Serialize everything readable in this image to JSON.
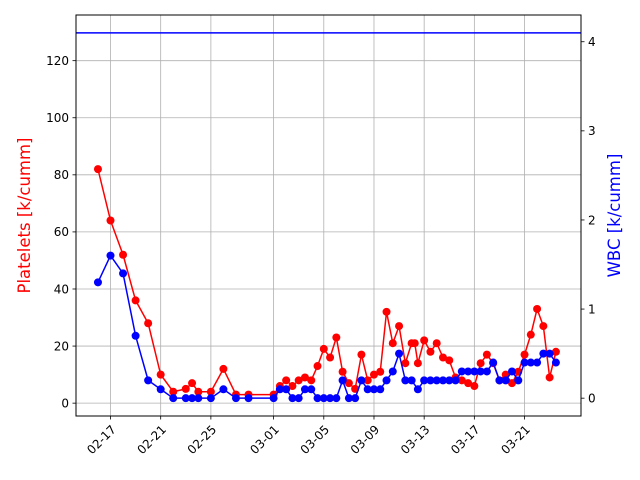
{
  "chart_data": {
    "type": "line",
    "title": "",
    "x_tick_labels": [
      "02-17",
      "02-21",
      "02-25",
      "03-01",
      "03-05",
      "03-09",
      "03-13",
      "03-17",
      "03-21"
    ],
    "left_axis": {
      "label": "Platelets [k/cumm]",
      "color": "#ff0000",
      "ticks": [
        0,
        20,
        40,
        60,
        80,
        100,
        120
      ],
      "ylim": [
        -4.5,
        136
      ]
    },
    "right_axis": {
      "label": "WBC [k/cumm]",
      "color": "#0000ff",
      "ticks": [
        0,
        1,
        2,
        3,
        4
      ],
      "ylim": [
        -0.2,
        4.3
      ]
    },
    "grid": true,
    "series": [
      {
        "axis": "left",
        "color": "#ff0000",
        "points": [
          [
            "02-16",
            82
          ],
          [
            "02-17",
            64
          ],
          [
            "02-18",
            52
          ],
          [
            "02-19",
            36
          ],
          [
            "02-20",
            28
          ],
          [
            "02-21",
            10
          ],
          [
            "02-22",
            4
          ],
          [
            "02-23",
            5
          ],
          [
            "02-23 12:00",
            7
          ],
          [
            "02-24",
            4
          ],
          [
            "02-25",
            4
          ],
          [
            "02-26",
            12
          ],
          [
            "02-27",
            3
          ],
          [
            "02-28",
            3
          ],
          [
            "03-01",
            3
          ],
          [
            "03-01 12:00",
            6
          ],
          [
            "03-02",
            8
          ],
          [
            "03-02 12:00",
            6
          ],
          [
            "03-03",
            8
          ],
          [
            "03-03 12:00",
            9
          ],
          [
            "03-04",
            8
          ],
          [
            "03-04 12:00",
            13
          ],
          [
            "03-05",
            19
          ],
          [
            "03-05 12:00",
            16
          ],
          [
            "03-06",
            23
          ],
          [
            "03-06 12:00",
            11
          ],
          [
            "03-07",
            7
          ],
          [
            "03-07 12:00",
            5
          ],
          [
            "03-08",
            17
          ],
          [
            "03-08 12:00",
            8
          ],
          [
            "03-09",
            10
          ],
          [
            "03-09 12:00",
            11
          ],
          [
            "03-10",
            32
          ],
          [
            "03-10 12:00",
            21
          ],
          [
            "03-11",
            27
          ],
          [
            "03-11 12:00",
            14
          ],
          [
            "03-12",
            21
          ],
          [
            "03-12 06:00",
            21
          ],
          [
            "03-12 12:00",
            14
          ],
          [
            "03-13",
            22
          ],
          [
            "03-13 12:00",
            18
          ],
          [
            "03-14",
            21
          ],
          [
            "03-14 12:00",
            16
          ],
          [
            "03-15",
            15
          ],
          [
            "03-15 12:00",
            9
          ],
          [
            "03-16",
            8
          ],
          [
            "03-16 12:00",
            7
          ],
          [
            "03-17",
            6
          ],
          [
            "03-17 12:00",
            14
          ],
          [
            "03-18",
            17
          ],
          [
            "03-18 12:00",
            14
          ],
          [
            "03-19",
            8
          ],
          [
            "03-19 12:00",
            10
          ],
          [
            "03-20",
            7
          ],
          [
            "03-20 12:00",
            11
          ],
          [
            "03-21",
            17
          ],
          [
            "03-21 12:00",
            24
          ],
          [
            "03-22",
            33
          ],
          [
            "03-22 12:00",
            27
          ],
          [
            "03-23",
            9
          ],
          [
            "03-23 12:00",
            18
          ]
        ]
      },
      {
        "axis": "right",
        "color": "#0000ff",
        "points": [
          [
            "02-16",
            1.3
          ],
          [
            "02-17",
            1.6
          ],
          [
            "02-18",
            1.4
          ],
          [
            "02-19",
            0.7
          ],
          [
            "02-20",
            0.2
          ],
          [
            "02-21",
            0.1
          ],
          [
            "02-22",
            0.0
          ],
          [
            "02-23",
            0.0
          ],
          [
            "02-23 12:00",
            0.0
          ],
          [
            "02-24",
            0.0
          ],
          [
            "02-25",
            0.0
          ],
          [
            "02-26",
            0.1
          ],
          [
            "02-27",
            0.0
          ],
          [
            "02-28",
            0.0
          ],
          [
            "03-01",
            0.0
          ],
          [
            "03-01 12:00",
            0.1
          ],
          [
            "03-02",
            0.1
          ],
          [
            "03-02 12:00",
            0.0
          ],
          [
            "03-03",
            0.0
          ],
          [
            "03-03 12:00",
            0.1
          ],
          [
            "03-04",
            0.1
          ],
          [
            "03-04 12:00",
            0.0
          ],
          [
            "03-05",
            0.0
          ],
          [
            "03-05 12:00",
            0.0
          ],
          [
            "03-06",
            0.0
          ],
          [
            "03-06 12:00",
            0.2
          ],
          [
            "03-07",
            0.0
          ],
          [
            "03-07 12:00",
            0.0
          ],
          [
            "03-08",
            0.2
          ],
          [
            "03-08 12:00",
            0.1
          ],
          [
            "03-09",
            0.1
          ],
          [
            "03-09 12:00",
            0.1
          ],
          [
            "03-10",
            0.2
          ],
          [
            "03-10 12:00",
            0.3
          ],
          [
            "03-11",
            0.5
          ],
          [
            "03-11 12:00",
            0.2
          ],
          [
            "03-12",
            0.2
          ],
          [
            "03-12 12:00",
            0.1
          ],
          [
            "03-13",
            0.2
          ],
          [
            "03-13 12:00",
            0.2
          ],
          [
            "03-14",
            0.2
          ],
          [
            "03-14 12:00",
            0.2
          ],
          [
            "03-15",
            0.2
          ],
          [
            "03-15 12:00",
            0.2
          ],
          [
            "03-16",
            0.3
          ],
          [
            "03-16 12:00",
            0.3
          ],
          [
            "03-17",
            0.3
          ],
          [
            "03-17 12:00",
            0.3
          ],
          [
            "03-18",
            0.3
          ],
          [
            "03-18 12:00",
            0.4
          ],
          [
            "03-19",
            0.2
          ],
          [
            "03-19 12:00",
            0.2
          ],
          [
            "03-20",
            0.3
          ],
          [
            "03-20 12:00",
            0.2
          ],
          [
            "03-21",
            0.4
          ],
          [
            "03-21 12:00",
            0.4
          ],
          [
            "03-22",
            0.4
          ],
          [
            "03-22 12:00",
            0.5
          ],
          [
            "03-23",
            0.5
          ],
          [
            "03-23 12:00",
            0.4
          ]
        ]
      }
    ],
    "reference_lines": [
      {
        "axis": "right",
        "y": 4.1,
        "color": "#0000ff"
      }
    ]
  }
}
